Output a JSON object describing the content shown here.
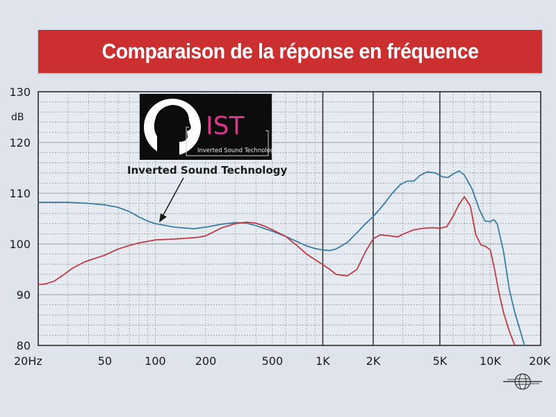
{
  "chart_data": {
    "type": "line",
    "title": "Comparaison de la réponse en fréquence",
    "yunit": "dB",
    "xscale": "log",
    "xlim": [
      20,
      20000
    ],
    "ylim": [
      80,
      130
    ],
    "x_ticks": [
      {
        "value": 20,
        "label": "20Hz"
      },
      {
        "value": 50,
        "label": "50"
      },
      {
        "value": 100,
        "label": "100"
      },
      {
        "value": 200,
        "label": "200"
      },
      {
        "value": 500,
        "label": "500"
      },
      {
        "value": 1000,
        "label": "1K"
      },
      {
        "value": 2000,
        "label": "2K"
      },
      {
        "value": 5000,
        "label": "5K"
      },
      {
        "value": 10000,
        "label": "10K"
      },
      {
        "value": 20000,
        "label": "20K"
      }
    ],
    "y_ticks": [
      {
        "value": 130,
        "label": "130"
      },
      {
        "value": 120,
        "label": "120"
      },
      {
        "value": 110,
        "label": "110"
      },
      {
        "value": 100,
        "label": "100"
      },
      {
        "value": 90,
        "label": "90"
      },
      {
        "value": 80,
        "label": "80"
      }
    ],
    "grid": true,
    "annotation": "Inverted Sound Technology",
    "series": [
      {
        "color": "#3a7ba0",
        "points": [
          [
            20,
            108.2
          ],
          [
            30,
            108.2
          ],
          [
            40,
            108
          ],
          [
            50,
            107.7
          ],
          [
            60,
            107.2
          ],
          [
            70,
            106.4
          ],
          [
            80,
            105.3
          ],
          [
            90,
            104.5
          ],
          [
            100,
            104
          ],
          [
            130,
            103.3
          ],
          [
            170,
            103
          ],
          [
            200,
            103.3
          ],
          [
            250,
            103.9
          ],
          [
            300,
            104.2
          ],
          [
            350,
            104.1
          ],
          [
            400,
            103.6
          ],
          [
            500,
            102.5
          ],
          [
            600,
            101.5
          ],
          [
            700,
            100.5
          ],
          [
            800,
            99.6
          ],
          [
            900,
            99.1
          ],
          [
            1000,
            98.8
          ],
          [
            1100,
            98.7
          ],
          [
            1200,
            99
          ],
          [
            1400,
            100.3
          ],
          [
            1600,
            102.2
          ],
          [
            1800,
            104
          ],
          [
            2000,
            105.4
          ],
          [
            2300,
            107.7
          ],
          [
            2600,
            110
          ],
          [
            2900,
            111.7
          ],
          [
            3200,
            112.4
          ],
          [
            3500,
            112.4
          ],
          [
            3800,
            113.5
          ],
          [
            4200,
            114.2
          ],
          [
            4700,
            114
          ],
          [
            5200,
            113.2
          ],
          [
            5600,
            113.1
          ],
          [
            6000,
            113.8
          ],
          [
            6500,
            114.4
          ],
          [
            7000,
            113.6
          ],
          [
            7800,
            110.8
          ],
          [
            8600,
            106.8
          ],
          [
            9300,
            104.5
          ],
          [
            10000,
            104.4
          ],
          [
            10500,
            104.8
          ],
          [
            11000,
            104
          ],
          [
            12000,
            98.5
          ],
          [
            13000,
            91
          ],
          [
            14000,
            86.5
          ],
          [
            15000,
            83.2
          ],
          [
            16000,
            80
          ]
        ]
      },
      {
        "color": "#c03a44",
        "points": [
          [
            20,
            92
          ],
          [
            22,
            92.1
          ],
          [
            25,
            92.7
          ],
          [
            28,
            93.8
          ],
          [
            32,
            95.2
          ],
          [
            38,
            96.5
          ],
          [
            45,
            97.3
          ],
          [
            50,
            97.8
          ],
          [
            60,
            99
          ],
          [
            70,
            99.7
          ],
          [
            80,
            100.2
          ],
          [
            100,
            100.8
          ],
          [
            120,
            100.9
          ],
          [
            150,
            101.1
          ],
          [
            180,
            101.3
          ],
          [
            200,
            101.6
          ],
          [
            250,
            103.2
          ],
          [
            300,
            104
          ],
          [
            350,
            104.3
          ],
          [
            400,
            104.1
          ],
          [
            450,
            103.5
          ],
          [
            500,
            102.8
          ],
          [
            600,
            101.5
          ],
          [
            700,
            99.7
          ],
          [
            800,
            98
          ],
          [
            1000,
            95.9
          ],
          [
            1100,
            95
          ],
          [
            1200,
            94
          ],
          [
            1400,
            93.7
          ],
          [
            1600,
            95
          ],
          [
            1800,
            98.5
          ],
          [
            2000,
            101
          ],
          [
            2200,
            101.8
          ],
          [
            2500,
            101.6
          ],
          [
            2800,
            101.4
          ],
          [
            3000,
            101.9
          ],
          [
            3500,
            102.8
          ],
          [
            4000,
            103.1
          ],
          [
            4500,
            103.2
          ],
          [
            5000,
            103.1
          ],
          [
            5500,
            103.4
          ],
          [
            6000,
            105.5
          ],
          [
            6500,
            107.8
          ],
          [
            7000,
            109.3
          ],
          [
            7600,
            107.5
          ],
          [
            8200,
            101.8
          ],
          [
            8800,
            99.8
          ],
          [
            9400,
            99.5
          ],
          [
            10000,
            98.8
          ],
          [
            10600,
            95
          ],
          [
            11200,
            90.8
          ],
          [
            12000,
            86.5
          ],
          [
            13000,
            82.8
          ],
          [
            14000,
            80
          ]
        ]
      }
    ]
  },
  "logo": {
    "text": "IST",
    "subtitle": "Inverted Sound Technology"
  },
  "colors": {
    "banner": "#cc2f2f",
    "background": "#dfe4ec",
    "plot_bg": "#e6eaf1",
    "logo_pink": "#e0338c"
  },
  "icons": {
    "corner_logo": "globe-icon"
  }
}
